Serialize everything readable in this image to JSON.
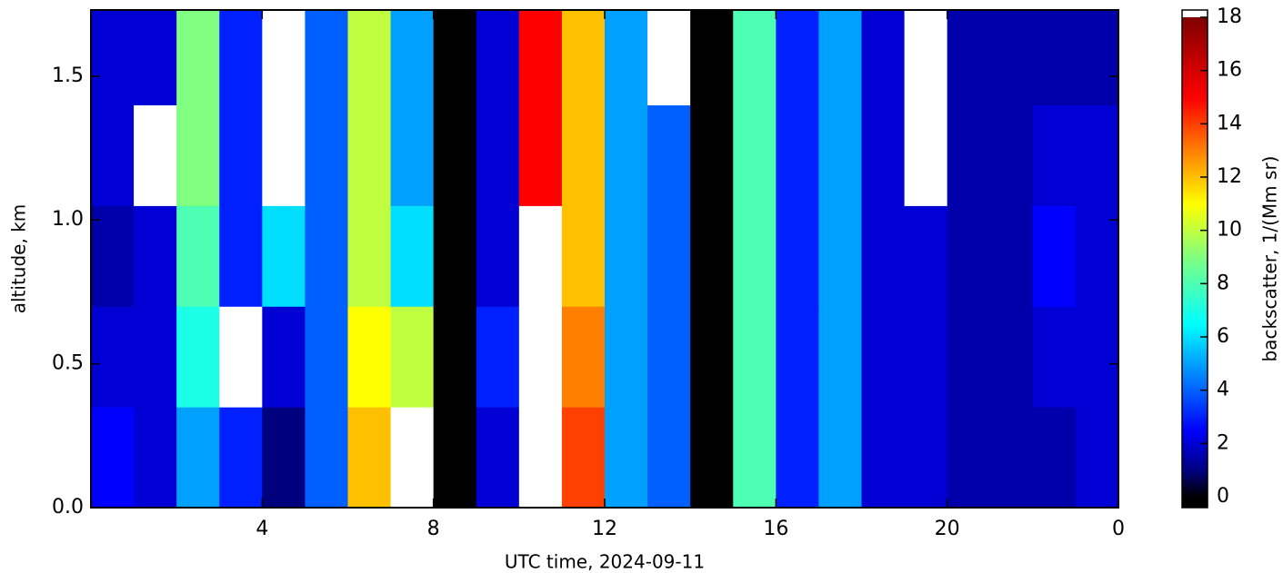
{
  "chart_data": {
    "type": "heatmap",
    "x_label": "UTC time,  2024-09-11",
    "y_label": "altitude, km",
    "colorbar_label": "backscatter, 1/(Mm sr)",
    "x_edges": [
      0,
      1,
      2,
      3,
      4,
      5,
      6,
      7,
      8,
      9,
      10,
      11,
      12,
      13,
      14,
      15,
      16,
      17,
      18,
      19,
      20,
      21,
      22,
      23,
      24
    ],
    "y_edges": [
      0,
      0.35,
      0.7,
      1.05,
      1.4,
      1.73
    ],
    "z": [
      [
        2.5,
        2,
        5,
        3,
        1,
        4,
        12,
        19,
        0,
        2,
        19,
        14,
        5,
        4,
        0,
        8,
        3,
        5,
        2,
        2,
        1.5,
        1.5,
        1.5,
        2
      ],
      [
        2,
        2,
        7,
        19,
        2,
        4,
        11,
        10,
        0,
        3,
        19,
        13,
        5,
        4,
        0,
        8,
        3,
        5,
        2,
        2,
        1.5,
        1.5,
        2,
        2
      ],
      [
        1.5,
        2,
        8,
        3,
        6,
        4,
        10,
        6,
        0,
        2,
        19,
        12,
        5,
        4,
        0,
        8,
        3,
        5,
        2,
        2,
        1.5,
        1.5,
        2.5,
        2
      ],
      [
        2,
        19,
        9,
        3,
        19,
        4,
        10,
        5,
        0,
        2,
        15,
        12,
        5,
        4,
        0,
        8,
        3,
        5,
        2,
        19,
        1.5,
        1.5,
        2,
        2
      ],
      [
        2,
        2,
        9,
        3,
        19,
        4,
        10,
        5,
        0,
        2,
        15,
        12,
        5,
        19,
        0,
        8,
        3,
        5,
        2,
        19,
        1.5,
        1.5,
        1.5,
        1.5
      ]
    ],
    "xlim": [
      0,
      24
    ],
    "xticks": [
      4,
      8,
      12,
      16,
      20,
      {
        "value": 24,
        "label": "0"
      }
    ],
    "ylim": [
      0,
      1.73
    ],
    "yticks": [
      {
        "value": 0,
        "label": "0.0"
      },
      {
        "value": 0.5,
        "label": "0.5"
      },
      {
        "value": 1,
        "label": "1.0"
      },
      {
        "value": 1.5,
        "label": "1.5"
      }
    ],
    "clim": [
      0,
      18
    ],
    "cticks": [
      0,
      2,
      4,
      6,
      8,
      10,
      12,
      14,
      16,
      18
    ],
    "colormap": [
      [
        0,
        "#000000"
      ],
      [
        1,
        "#00007f"
      ],
      [
        2.5,
        "#0000ff"
      ],
      [
        5,
        "#00a0ff"
      ],
      [
        6.5,
        "#00ffff"
      ],
      [
        9,
        "#80ff80"
      ],
      [
        11,
        "#ffff00"
      ],
      [
        13,
        "#ff8000"
      ],
      [
        15,
        "#ff0000"
      ],
      [
        18,
        "#800000"
      ]
    ],
    "under_color": "#000000",
    "over_color": "#ffffff"
  }
}
